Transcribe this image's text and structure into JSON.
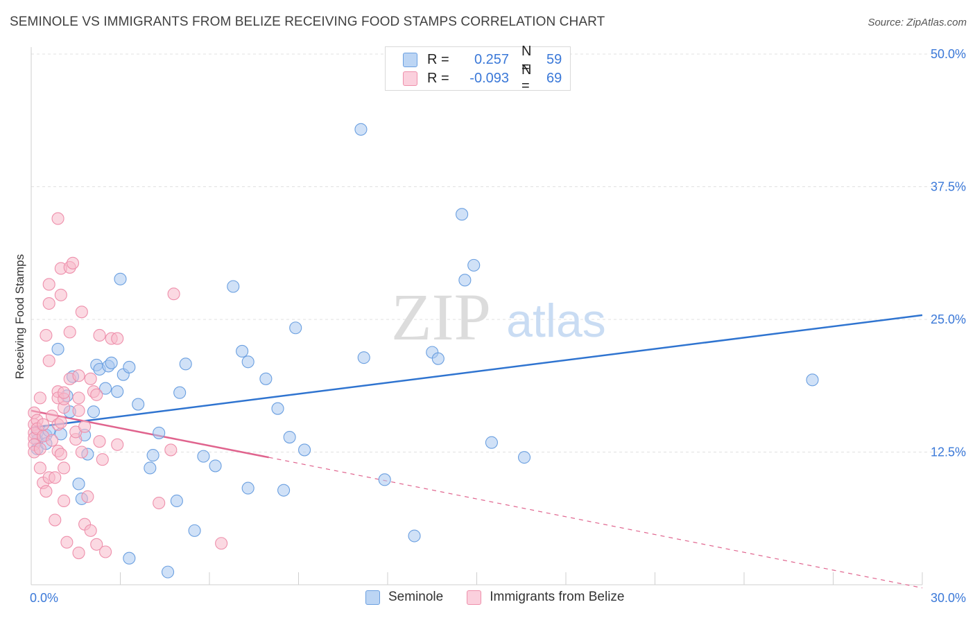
{
  "header": {
    "title": "SEMINOLE VS IMMIGRANTS FROM BELIZE RECEIVING FOOD STAMPS CORRELATION CHART",
    "source": "Source: ZipAtlas.com"
  },
  "watermark": {
    "zip": "ZIP",
    "atlas": "atlas"
  },
  "legend": {
    "rows": [
      {
        "r_label": "R =",
        "r_value": "0.257",
        "n_label": "N =",
        "n_value": "59",
        "color": "#a9c8f0"
      },
      {
        "r_label": "R =",
        "r_value": "-0.093",
        "n_label": "N =",
        "n_value": "69",
        "color": "#f7b9cb"
      }
    ]
  },
  "bottom_legend": {
    "items": [
      {
        "label": "Seminole",
        "color": "#a9c8f0"
      },
      {
        "label": "Immigrants from Belize",
        "color": "#f7b9cb"
      }
    ]
  },
  "chart_data": {
    "type": "scatter",
    "title": "SEMINOLE VS IMMIGRANTS FROM BELIZE RECEIVING FOOD STAMPS CORRELATION CHART",
    "xlabel": "",
    "ylabel": "Receiving Food Stamps",
    "xlim": [
      0,
      30
    ],
    "ylim": [
      0,
      50
    ],
    "x_tick_labels": [
      "0.0%",
      "30.0%"
    ],
    "y_tick_labels": [
      "12.5%",
      "25.0%",
      "37.5%",
      "50.0%"
    ],
    "y_ticks": [
      12.5,
      25.0,
      37.5,
      50.0
    ],
    "grid": true,
    "legend_position": "top-center",
    "series": [
      {
        "name": "Seminole",
        "color": "#6a9fe0",
        "fill": "#a9c8f0",
        "points": [
          [
            0.2,
            14.3
          ],
          [
            0.2,
            13.6
          ],
          [
            0.2,
            12.8
          ],
          [
            0.5,
            14.1
          ],
          [
            0.5,
            13.3
          ],
          [
            0.6,
            14.5
          ],
          [
            0.9,
            22.2
          ],
          [
            1.0,
            14.2
          ],
          [
            1.2,
            17.8
          ],
          [
            1.3,
            16.3
          ],
          [
            1.4,
            19.6
          ],
          [
            1.6,
            9.5
          ],
          [
            1.7,
            8.1
          ],
          [
            1.8,
            14.1
          ],
          [
            1.9,
            12.3
          ],
          [
            2.1,
            16.3
          ],
          [
            2.2,
            20.7
          ],
          [
            2.3,
            20.3
          ],
          [
            2.5,
            18.5
          ],
          [
            2.6,
            20.6
          ],
          [
            2.7,
            20.9
          ],
          [
            2.9,
            18.2
          ],
          [
            3.0,
            28.8
          ],
          [
            3.1,
            19.8
          ],
          [
            3.3,
            20.5
          ],
          [
            3.3,
            2.5
          ],
          [
            3.6,
            17.0
          ],
          [
            4.0,
            11.0
          ],
          [
            4.1,
            12.2
          ],
          [
            4.3,
            14.3
          ],
          [
            4.6,
            1.2
          ],
          [
            4.9,
            7.9
          ],
          [
            5.0,
            18.1
          ],
          [
            5.2,
            20.8
          ],
          [
            5.5,
            5.1
          ],
          [
            5.8,
            12.1
          ],
          [
            6.2,
            11.2
          ],
          [
            6.8,
            28.1
          ],
          [
            7.1,
            22.0
          ],
          [
            7.3,
            21.0
          ],
          [
            7.3,
            9.1
          ],
          [
            7.9,
            19.4
          ],
          [
            8.3,
            16.6
          ],
          [
            8.5,
            8.9
          ],
          [
            8.7,
            13.9
          ],
          [
            8.9,
            24.2
          ],
          [
            9.2,
            12.7
          ],
          [
            11.1,
            42.9
          ],
          [
            11.2,
            21.4
          ],
          [
            11.9,
            9.9
          ],
          [
            12.9,
            4.6
          ],
          [
            13.5,
            21.9
          ],
          [
            13.7,
            21.3
          ],
          [
            14.5,
            34.9
          ],
          [
            14.6,
            28.7
          ],
          [
            14.9,
            30.1
          ],
          [
            15.5,
            13.4
          ],
          [
            16.6,
            12.0
          ],
          [
            26.3,
            19.3
          ]
        ]
      },
      {
        "name": "Immigrants from Belize",
        "color": "#ee8fab",
        "fill": "#f7b9cb",
        "points": [
          [
            0.1,
            15.1
          ],
          [
            0.1,
            14.3
          ],
          [
            0.1,
            13.8
          ],
          [
            0.1,
            13.2
          ],
          [
            0.1,
            12.5
          ],
          [
            0.1,
            16.2
          ],
          [
            0.2,
            15.5
          ],
          [
            0.2,
            14.7
          ],
          [
            0.3,
            17.6
          ],
          [
            0.3,
            12.8
          ],
          [
            0.3,
            11.0
          ],
          [
            0.4,
            9.6
          ],
          [
            0.4,
            15.1
          ],
          [
            0.4,
            14.0
          ],
          [
            0.5,
            23.5
          ],
          [
            0.5,
            8.8
          ],
          [
            0.6,
            26.5
          ],
          [
            0.6,
            28.3
          ],
          [
            0.6,
            21.1
          ],
          [
            0.6,
            10.1
          ],
          [
            0.7,
            13.6
          ],
          [
            0.7,
            15.9
          ],
          [
            0.8,
            10.1
          ],
          [
            0.8,
            6.1
          ],
          [
            0.9,
            18.2
          ],
          [
            0.9,
            17.6
          ],
          [
            0.9,
            15.1
          ],
          [
            0.9,
            12.6
          ],
          [
            0.9,
            34.5
          ],
          [
            1.0,
            29.8
          ],
          [
            1.0,
            27.3
          ],
          [
            1.0,
            12.3
          ],
          [
            1.0,
            15.3
          ],
          [
            1.1,
            16.7
          ],
          [
            1.1,
            17.5
          ],
          [
            1.1,
            18.1
          ],
          [
            1.1,
            11.0
          ],
          [
            1.1,
            7.9
          ],
          [
            1.2,
            4.0
          ],
          [
            1.3,
            19.4
          ],
          [
            1.3,
            23.8
          ],
          [
            1.3,
            29.9
          ],
          [
            1.4,
            30.3
          ],
          [
            1.5,
            13.7
          ],
          [
            1.5,
            14.4
          ],
          [
            1.6,
            17.6
          ],
          [
            1.6,
            19.7
          ],
          [
            1.6,
            16.4
          ],
          [
            1.6,
            3.0
          ],
          [
            1.7,
            25.7
          ],
          [
            1.7,
            12.5
          ],
          [
            1.8,
            14.9
          ],
          [
            1.8,
            5.7
          ],
          [
            1.9,
            8.3
          ],
          [
            2.0,
            19.4
          ],
          [
            2.0,
            5.1
          ],
          [
            2.1,
            18.2
          ],
          [
            2.2,
            17.9
          ],
          [
            2.2,
            3.8
          ],
          [
            2.3,
            23.5
          ],
          [
            2.3,
            13.5
          ],
          [
            2.4,
            11.8
          ],
          [
            2.5,
            3.1
          ],
          [
            2.7,
            23.2
          ],
          [
            2.9,
            23.2
          ],
          [
            2.9,
            13.2
          ],
          [
            4.3,
            7.7
          ],
          [
            4.7,
            12.7
          ],
          [
            4.8,
            27.4
          ],
          [
            6.4,
            3.9
          ]
        ]
      }
    ],
    "trendlines": [
      {
        "series": "Seminole",
        "color": "#2f74d0",
        "x": [
          0,
          30
        ],
        "y": [
          14.8,
          25.4
        ],
        "style": "solid"
      },
      {
        "series": "Immigrants from Belize",
        "color": "#e0648e",
        "x": [
          0,
          8
        ],
        "y": [
          16.4,
          12.0
        ],
        "style": "solid"
      },
      {
        "series": "Immigrants from Belize",
        "color": "#e0648e",
        "x": [
          8,
          30
        ],
        "y": [
          12.0,
          -0.3
        ],
        "style": "dashed"
      }
    ]
  }
}
